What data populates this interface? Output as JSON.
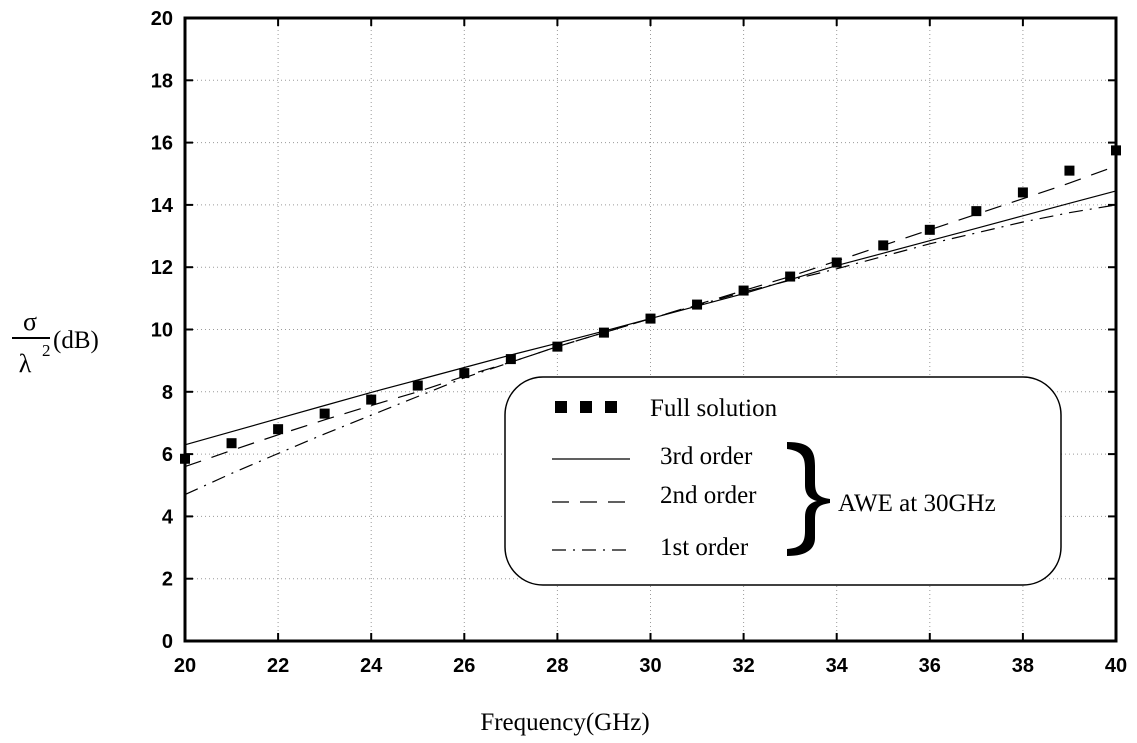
{
  "chart_data": {
    "type": "line",
    "title": "",
    "xlabel": "Frequency(GHz)",
    "ylabel": {
      "numerator": "σ",
      "denominator": "λ",
      "exponent": "2",
      "unit": "(dB)"
    },
    "xlim": [
      20,
      40
    ],
    "ylim": [
      0,
      20
    ],
    "xticks": [
      "20",
      "22",
      "24",
      "26",
      "28",
      "30",
      "32",
      "34",
      "36",
      "38",
      "40"
    ],
    "yticks": [
      "0",
      "2",
      "4",
      "6",
      "8",
      "10",
      "12",
      "14",
      "16",
      "18",
      "20"
    ],
    "grid": true,
    "legend_position": "bottom-right",
    "x": [
      20,
      21,
      22,
      23,
      24,
      25,
      26,
      27,
      28,
      29,
      30,
      31,
      32,
      33,
      34,
      35,
      36,
      37,
      38,
      39,
      40
    ],
    "series": [
      {
        "name": "Full solution",
        "style": "markers",
        "values": [
          5.85,
          6.35,
          6.8,
          7.3,
          7.75,
          8.2,
          8.6,
          9.05,
          9.45,
          9.9,
          10.35,
          10.8,
          11.25,
          11.7,
          12.15,
          12.7,
          13.2,
          13.8,
          14.4,
          15.1,
          15.75
        ]
      },
      {
        "name": "3rd order",
        "style": "solid",
        "values": [
          6.3,
          6.72,
          7.14,
          7.56,
          7.98,
          8.38,
          8.78,
          9.18,
          9.56,
          9.95,
          10.35,
          10.75,
          11.15,
          11.6,
          12.05,
          12.45,
          12.85,
          13.25,
          13.65,
          14.05,
          14.45
        ]
      },
      {
        "name": "2nd order",
        "style": "dashed",
        "values": [
          5.6,
          6.12,
          6.62,
          7.1,
          7.56,
          8.0,
          8.5,
          8.95,
          9.45,
          9.9,
          10.35,
          10.8,
          11.25,
          11.7,
          12.2,
          12.7,
          13.2,
          13.7,
          14.2,
          14.7,
          15.25
        ]
      },
      {
        "name": "1st order",
        "style": "dash-dot",
        "values": [
          4.7,
          5.38,
          6.02,
          6.65,
          7.25,
          7.85,
          8.45,
          8.95,
          9.45,
          9.9,
          10.35,
          10.78,
          11.2,
          11.58,
          11.95,
          12.35,
          12.75,
          13.1,
          13.45,
          13.75,
          14.0
        ]
      }
    ],
    "annotation": "AWE at 30GHz"
  }
}
